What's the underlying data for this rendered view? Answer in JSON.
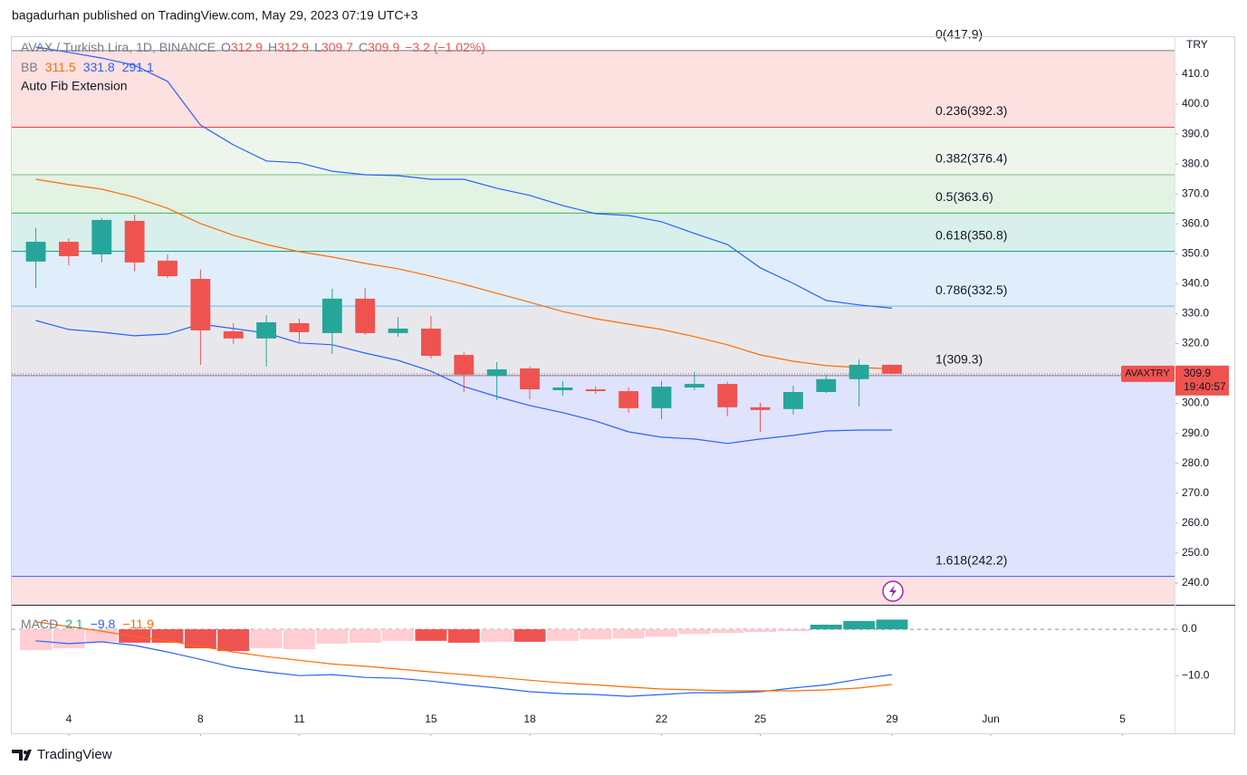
{
  "header": {
    "text": "bagadurhan published on TradingView.com, May 29, 2023 07:19 UTC+3"
  },
  "footer": {
    "brand": "TradingView"
  },
  "chart_data": [
    {
      "type": "candlestick",
      "title": "AVAX / Turkish Lira, 1D, BINANCE",
      "ohlc": [
        {
          "prefix": "O",
          "value": 312.9
        },
        {
          "prefix": "H",
          "value": 312.9
        },
        {
          "prefix": "L",
          "value": 309.7
        },
        {
          "prefix": "C",
          "value": 309.9
        }
      ],
      "change": {
        "value": -3.2,
        "label": "−3.2"
      },
      "change_pct": {
        "value": -1.02,
        "label": "(−1.02%)"
      },
      "indicator": {
        "name": "BB",
        "values": [
          311.5,
          331.8,
          291.1
        ],
        "colors": [
          "#ff6d00",
          "#2962ff",
          "#2962ff"
        ]
      },
      "fib_name": "Auto Fib Extension",
      "currency": "TRY",
      "up_color": "#26a69a",
      "down_color": "#ef5350",
      "x": [
        3,
        4,
        5,
        6,
        7,
        8,
        9,
        10,
        11,
        12,
        13,
        14,
        15,
        16,
        17,
        18,
        19,
        20,
        21,
        22,
        23,
        24,
        25,
        26,
        27,
        28,
        29
      ],
      "open": [
        347.4,
        354.0,
        349.8,
        361.0,
        347.7,
        341.6,
        324.1,
        321.7,
        326.8,
        323.5,
        335.0,
        323.5,
        325.0,
        316.2,
        309.3,
        311.7,
        304.4,
        304.7,
        304.1,
        298.4,
        305.3,
        306.5,
        298.7,
        298.1,
        303.8,
        308.1,
        312.9
      ],
      "high": [
        358.6,
        355.2,
        361.9,
        363.1,
        349.8,
        344.7,
        326.8,
        329.5,
        328.3,
        338.3,
        338.6,
        328.9,
        329.2,
        317.1,
        313.8,
        312.3,
        307.5,
        305.6,
        305.3,
        307.5,
        310.5,
        307.2,
        300.2,
        305.9,
        309.6,
        314.7,
        312.9
      ],
      "low": [
        338.6,
        346.2,
        347.1,
        344.1,
        341.9,
        312.9,
        319.9,
        312.3,
        320.5,
        316.5,
        322.9,
        322.3,
        315.0,
        303.8,
        301.1,
        301.4,
        302.6,
        303.2,
        296.9,
        294.7,
        304.4,
        295.7,
        290.5,
        296.3,
        303.5,
        299.0,
        309.7
      ],
      "close": [
        354.0,
        349.2,
        361.3,
        347.1,
        342.5,
        324.4,
        321.7,
        327.1,
        323.8,
        335.0,
        323.5,
        325.0,
        315.9,
        309.6,
        311.4,
        304.7,
        305.3,
        304.1,
        298.4,
        305.6,
        306.5,
        298.7,
        297.8,
        303.8,
        308.1,
        312.9,
        309.9
      ],
      "overlays": [
        {
          "color": "#2962ff",
          "values": [
            419.1,
            417.3,
            415.4,
            413.0,
            407.6,
            393.0,
            386.4,
            381.0,
            380.4,
            377.6,
            376.4,
            376.1,
            374.9,
            374.9,
            371.9,
            369.5,
            366.1,
            363.4,
            362.8,
            360.7,
            356.8,
            353.1,
            345.3,
            340.1,
            334.4,
            332.9,
            331.8
          ]
        },
        {
          "color": "#ff6d00",
          "values": [
            374.9,
            373.1,
            371.6,
            368.9,
            365.2,
            360.1,
            356.2,
            353.1,
            350.7,
            348.9,
            346.8,
            345.0,
            342.5,
            339.8,
            336.8,
            333.8,
            330.7,
            328.3,
            326.5,
            324.7,
            322.3,
            319.6,
            316.2,
            314.1,
            312.6,
            312.0,
            311.5
          ]
        },
        {
          "color": "#2962ff",
          "values": [
            327.7,
            324.7,
            323.8,
            322.6,
            323.2,
            326.5,
            325.0,
            323.5,
            320.2,
            319.6,
            316.8,
            314.4,
            310.8,
            305.6,
            302.3,
            299.3,
            296.9,
            294.1,
            290.5,
            288.7,
            288.1,
            286.6,
            288.1,
            289.3,
            290.8,
            291.1,
            291.1
          ]
        }
      ],
      "fib_levels": [
        {
          "label": "0(417.9)",
          "value": 417.9,
          "color": "#787b86",
          "zone_color": "#fde0e0"
        },
        {
          "label": "0.236(392.3)",
          "value": 392.3,
          "color": "#f23645",
          "zone_color": "#eef6ec"
        },
        {
          "label": "0.382(376.4)",
          "value": 376.4,
          "color": "#81c784",
          "zone_color": "#e2f2e3"
        },
        {
          "label": "0.5(363.6)",
          "value": 363.6,
          "color": "#4caf50",
          "zone_color": "#d8efeb"
        },
        {
          "label": "0.618(350.8)",
          "value": 350.8,
          "color": "#089981",
          "zone_color": "#e0eefb"
        },
        {
          "label": "0.786(332.5)",
          "value": 332.5,
          "color": "#64b5f6",
          "zone_color": "#e8e8ec"
        },
        {
          "label": "1(309.3)",
          "value": 309.3,
          "color": "#787b86",
          "zone_color": "#dfe3fb"
        },
        {
          "label": "1.618(242.2)",
          "value": 242.2,
          "color": "#2962ff",
          "zone_color": "#fde0e0"
        }
      ],
      "last_price": {
        "symbol": "AVAXTRY",
        "value": 309.9,
        "countdown": "19:40:57",
        "color": "#ef5350"
      },
      "xlim": [
        2.27,
        37.58
      ],
      "xticks": [
        4,
        8,
        11,
        15,
        18,
        22,
        25,
        29,
        {
          "value": 32,
          "label": "Jun"
        },
        {
          "value": 36,
          "label": "5"
        }
      ],
      "ylim": [
        232.7,
        422.7
      ],
      "yticks": [
        {
          "value": 240,
          "label": "240.0"
        },
        {
          "value": 250,
          "label": "250.0"
        },
        {
          "value": 260,
          "label": "260.0"
        },
        {
          "value": 270,
          "label": "270.0"
        },
        {
          "value": 280,
          "label": "280.0"
        },
        {
          "value": 290,
          "label": "290.0"
        },
        {
          "value": 300,
          "label": "300.0"
        },
        {
          "value": 310,
          "label": "310.0"
        },
        {
          "value": 320,
          "label": "320.0"
        },
        {
          "value": 330,
          "label": "330.0"
        },
        {
          "value": 340,
          "label": "340.0"
        },
        {
          "value": 350,
          "label": "350.0"
        },
        {
          "value": 360,
          "label": "360.0"
        },
        {
          "value": 370,
          "label": "370.0"
        },
        {
          "value": 380,
          "label": "380.0"
        },
        {
          "value": 390,
          "label": "390.0"
        },
        {
          "value": 400,
          "label": "400.0"
        },
        {
          "value": 410,
          "label": "410.0"
        }
      ]
    },
    {
      "type": "macd",
      "name": "MACD",
      "legend": [
        {
          "value": 2.1,
          "color": "#26a69a"
        },
        {
          "value": -9.8,
          "label": "−9.8",
          "color": "#2962ff"
        },
        {
          "value": -11.9,
          "label": "−11.9",
          "color": "#ff6d00"
        }
      ],
      "histogram": [
        -4.5,
        -4.1,
        -2.7,
        -2.9,
        -2.9,
        -4.1,
        -4.7,
        -4.1,
        -4.3,
        -3.1,
        -2.9,
        -2.5,
        -2.5,
        -2.9,
        -2.7,
        -2.7,
        -2.5,
        -2.2,
        -2.0,
        -1.6,
        -1.0,
        -0.8,
        -0.6,
        -0.4,
        1.0,
        1.8,
        2.1
      ],
      "histogram_colors": [
        "#ffcdd2",
        "#ffcdd2",
        "#ffcdd2",
        "#ef5350",
        "#ef5350",
        "#ef5350",
        "#ef5350",
        "#ffcdd2",
        "#ffcdd2",
        "#ffcdd2",
        "#ffcdd2",
        "#ffcdd2",
        "#ef5350",
        "#ef5350",
        "#ffcdd2",
        "#ef5350",
        "#ffcdd2",
        "#ffcdd2",
        "#ffcdd2",
        "#ffcdd2",
        "#ffcdd2",
        "#ffcdd2",
        "#ffcdd2",
        "#ffcdd2",
        "#26a69a",
        "#26a69a",
        "#26a69a"
      ],
      "lines": [
        {
          "color": "#2962ff",
          "values": [
            -2.5,
            -3.1,
            -2.7,
            -3.5,
            -4.9,
            -6.5,
            -8.2,
            -9.2,
            -10.0,
            -9.8,
            -10.4,
            -10.6,
            -11.2,
            -12.0,
            -12.7,
            -13.5,
            -13.9,
            -14.1,
            -14.5,
            -14.1,
            -13.7,
            -13.7,
            -13.5,
            -12.7,
            -12.0,
            -10.8,
            -9.8
          ]
        },
        {
          "color": "#ff6d00",
          "values": [
            1.6,
            0.6,
            -0.4,
            -1.6,
            -2.5,
            -3.7,
            -4.9,
            -5.9,
            -6.7,
            -7.5,
            -8.0,
            -8.6,
            -9.2,
            -9.8,
            -10.4,
            -11.0,
            -11.6,
            -12.0,
            -12.5,
            -12.9,
            -13.1,
            -13.3,
            -13.3,
            -13.3,
            -13.1,
            -12.7,
            -11.9
          ]
        }
      ],
      "ylim": [
        -22.5,
        5.3
      ],
      "yticks": [
        {
          "value": 0,
          "label": "0.0"
        },
        {
          "value": -10,
          "label": "−10.0"
        }
      ]
    }
  ]
}
